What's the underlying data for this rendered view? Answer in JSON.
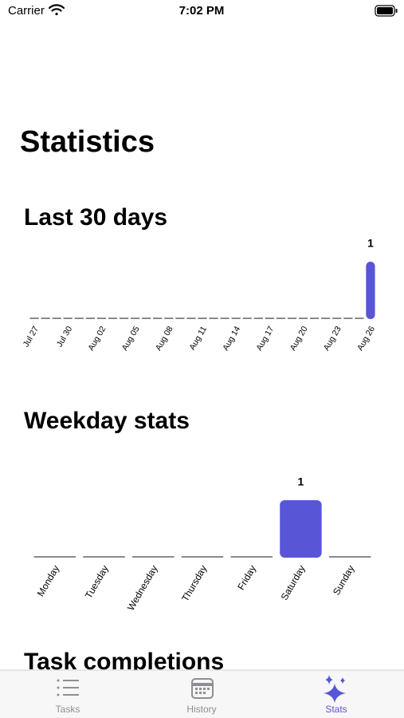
{
  "status_bar": {
    "carrier": "Carrier",
    "time": "7:02 PM"
  },
  "header": {
    "title": "Statistics"
  },
  "sections": [
    {
      "title": "Last 30 days",
      "chart_data": {
        "type": "bar",
        "color": "#5856d6",
        "categories": [
          "Jul 27",
          null,
          null,
          "Jul 30",
          null,
          null,
          "Aug 02",
          null,
          null,
          "Aug 05",
          null,
          null,
          "Aug 08",
          null,
          null,
          "Aug 11",
          null,
          null,
          "Aug 14",
          null,
          null,
          "Aug 17",
          null,
          null,
          "Aug 20",
          null,
          null,
          "Aug 23",
          null,
          null,
          "Aug 26"
        ],
        "values": [
          0,
          0,
          0,
          0,
          0,
          0,
          0,
          0,
          0,
          0,
          0,
          0,
          0,
          0,
          0,
          0,
          0,
          0,
          0,
          0,
          0,
          0,
          0,
          0,
          0,
          0,
          0,
          0,
          0,
          0,
          1
        ]
      }
    },
    {
      "title": "Weekday stats",
      "chart_data": {
        "type": "bar",
        "color": "#5856d6",
        "categories": [
          "Monday",
          "Tuesday",
          "Wednesday",
          "Thursday",
          "Friday",
          "Saturday",
          "Sunday"
        ],
        "values": [
          0,
          0,
          0,
          0,
          0,
          1,
          0
        ]
      }
    },
    {
      "title": "Task completions"
    }
  ],
  "tab_bar": {
    "tabs": [
      {
        "label": "Tasks"
      },
      {
        "label": "History"
      },
      {
        "label": "Stats",
        "selected": true
      }
    ]
  }
}
